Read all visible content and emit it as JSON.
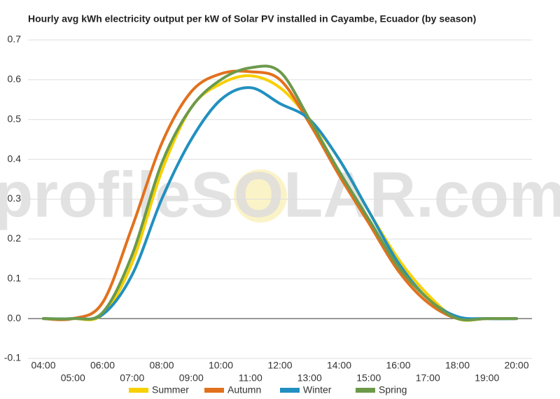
{
  "chart_data": {
    "type": "line",
    "title": "Hourly avg kWh electricity output per kW of Solar PV installed in Cayambe, Ecuador (by season)",
    "watermark": "profileSOLAR.com",
    "categories": [
      "04:00",
      "05:00",
      "06:00",
      "07:00",
      "08:00",
      "09:00",
      "10:00",
      "11:00",
      "12:00",
      "13:00",
      "14:00",
      "15:00",
      "16:00",
      "17:00",
      "18:00",
      "19:00",
      "20:00"
    ],
    "series": [
      {
        "name": "Summer",
        "color": "#f7d000",
        "values": [
          0,
          0,
          0.01,
          0.14,
          0.37,
          0.53,
          0.59,
          0.61,
          0.58,
          0.5,
          0.4,
          0.27,
          0.15,
          0.06,
          0,
          0,
          0
        ]
      },
      {
        "name": "Autumn",
        "color": "#e2711d",
        "values": [
          0,
          0,
          0.04,
          0.23,
          0.44,
          0.57,
          0.615,
          0.62,
          0.6,
          0.49,
          0.36,
          0.24,
          0.12,
          0.04,
          0,
          0,
          0
        ]
      },
      {
        "name": "Winter",
        "color": "#2190c0",
        "values": [
          0,
          0,
          0.01,
          0.11,
          0.3,
          0.45,
          0.55,
          0.58,
          0.54,
          0.5,
          0.4,
          0.27,
          0.14,
          0.05,
          0.005,
          0,
          0
        ]
      },
      {
        "name": "Spring",
        "color": "#6c9a4b",
        "values": [
          0,
          0,
          0.015,
          0.16,
          0.39,
          0.53,
          0.6,
          0.63,
          0.62,
          0.5,
          0.37,
          0.25,
          0.13,
          0.05,
          0,
          0,
          0
        ]
      }
    ],
    "ylim": [
      -0.1,
      0.7
    ],
    "yticks": [
      -0.1,
      {
        "value": 0,
        "label": "0.0"
      },
      0.1,
      0.2,
      0.3,
      0.4,
      0.5,
      0.6,
      0.7
    ],
    "grid": true,
    "legend": "bottom"
  }
}
